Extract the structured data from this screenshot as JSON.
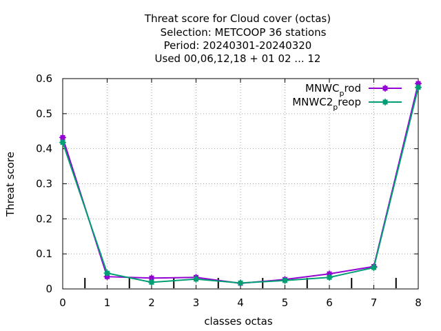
{
  "chart_data": {
    "type": "line",
    "title": [
      "Threat score  for Cloud cover (octas)",
      "Selection: METCOOP     36 stations",
      "Period: 20240301-20240320",
      "Used  00,06,12,18  + 01 02 ... 12"
    ],
    "xlabel": "classes octas",
    "ylabel": "Threat score",
    "xlim": [
      0,
      8
    ],
    "ylim": [
      0,
      0.6
    ],
    "x_ticks": [
      "0",
      "1",
      "2",
      "3",
      "4",
      "5",
      "6",
      "7",
      "8"
    ],
    "y_ticks": [
      "0",
      "0.1",
      "0.2",
      "0.3",
      "0.4",
      "0.5",
      "0.6"
    ],
    "grid": true,
    "legend_position": "top-right",
    "histogram_ticks_x": [
      0.5,
      1.5,
      2.5,
      3.5,
      4.5,
      5.5,
      6.5,
      7.5
    ],
    "x": [
      0,
      1,
      2,
      3,
      4,
      5,
      6,
      7,
      8
    ],
    "series": [
      {
        "name_main": "MNWC",
        "name_sub": "p",
        "name_tail": "rod",
        "color": "#9400d3",
        "values": [
          0.432,
          0.035,
          0.031,
          0.033,
          0.016,
          0.027,
          0.043,
          0.064,
          0.586
        ]
      },
      {
        "name_main": "MNWC2",
        "name_sub": "p",
        "name_tail": "reop",
        "color": "#009e73",
        "values": [
          0.418,
          0.045,
          0.019,
          0.028,
          0.017,
          0.024,
          0.033,
          0.061,
          0.575
        ]
      }
    ]
  }
}
